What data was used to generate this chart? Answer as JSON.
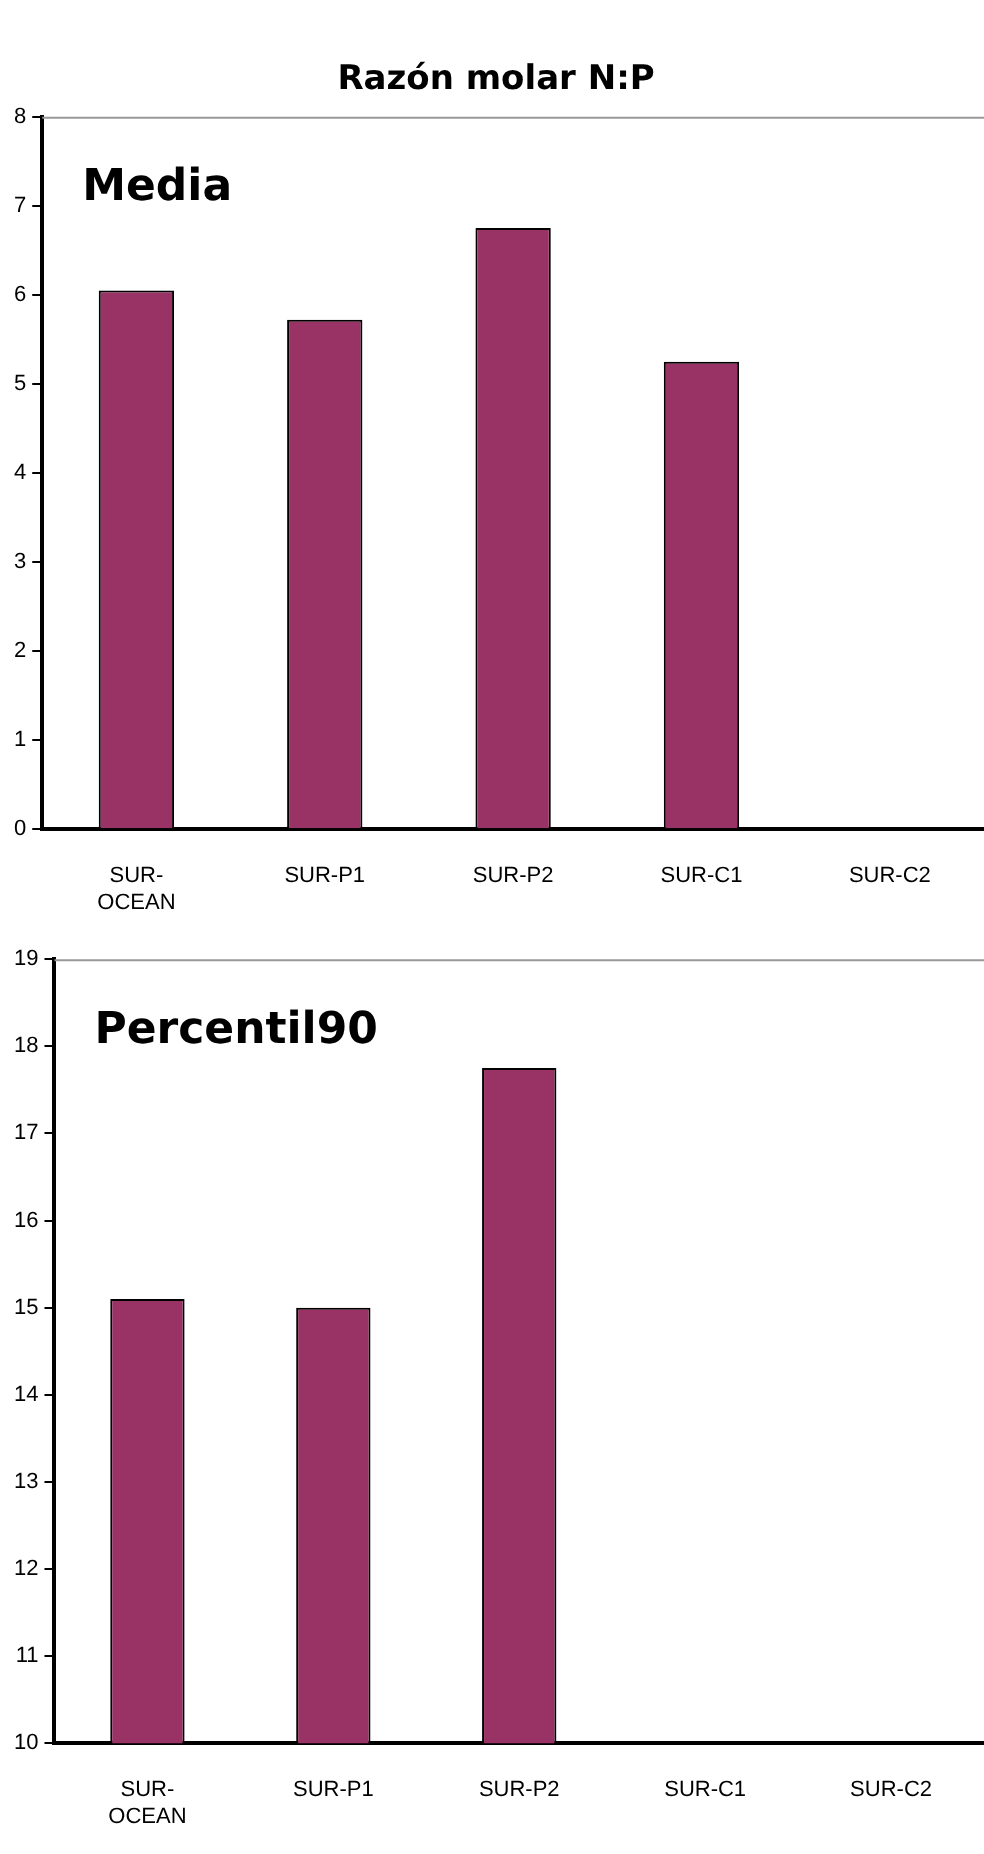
{
  "chart_data": [
    {
      "type": "bar",
      "title": "Razón molar N:P",
      "annotations": [
        "Media"
      ],
      "categories": [
        "SUR-OCEAN",
        "SUR-P1",
        "SUR-P2",
        "SUR-C1",
        "SUR-C2"
      ],
      "values": [
        6.05,
        5.72,
        6.75,
        5.25,
        null
      ],
      "color": "#993366",
      "ylim": [
        0,
        8
      ],
      "yticks": [
        0,
        1,
        2,
        3,
        4,
        5,
        6,
        7,
        8
      ],
      "grid": false
    },
    {
      "type": "bar",
      "annotations": [
        "Percentil90"
      ],
      "categories": [
        "SUR-OCEAN",
        "SUR-P1",
        "SUR-P2",
        "SUR-C1",
        "SUR-C2"
      ],
      "values": [
        15.1,
        15.0,
        17.75,
        null,
        null
      ],
      "color": "#993366",
      "ylim": [
        10,
        19
      ],
      "yticks": [
        10,
        11,
        12,
        13,
        14,
        15,
        16,
        17,
        18,
        19
      ],
      "grid": false
    }
  ]
}
